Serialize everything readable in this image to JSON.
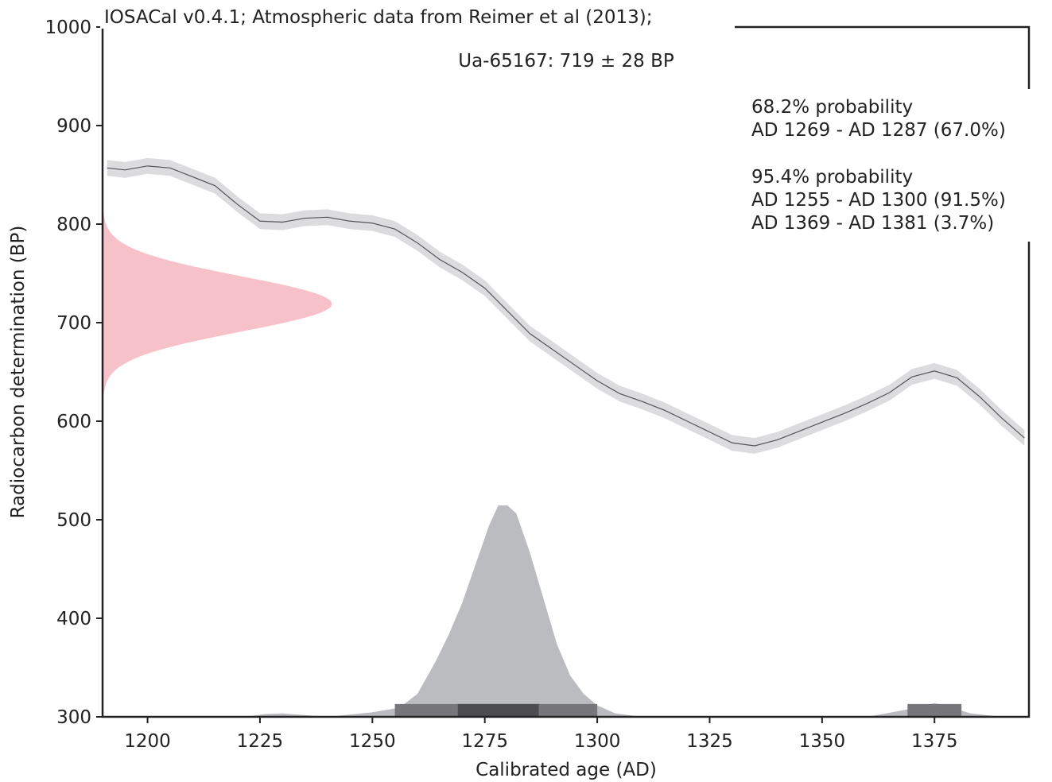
{
  "chart_data": {
    "type": "area",
    "header": "IOSACal v0.4.1; Atmospheric data from Reimer et al (2013);",
    "title": "Ua-65167: 719 ± 28 BP",
    "xlabel": "Calibrated age (AD)",
    "ylabel": "Radiocarbon determination (BP)",
    "xlim": [
      1190,
      1396
    ],
    "ylim": [
      300,
      1000
    ],
    "xticks": [
      1200,
      1225,
      1250,
      1275,
      1300,
      1325,
      1350,
      1375
    ],
    "yticks": [
      300,
      400,
      500,
      600,
      700,
      800,
      900,
      1000
    ],
    "grid": false,
    "annotation_lines": [
      "68.2% probability",
      "AD 1269 - AD 1287 (67.0%)",
      "",
      "95.4% probability",
      "AD 1255 - AD 1300 (91.5%)",
      "AD 1369 - AD 1381 (3.7%)"
    ],
    "colors": {
      "calibration_curve": "#555555",
      "calibration_band": "#dcdcde",
      "radiocarbon_distribution": "#f7c1ca",
      "calibrated_distribution": "#bbbcc0",
      "range_95": "#77777b",
      "range_68": "#4d4d50"
    },
    "radiocarbon_date": {
      "mean": 719,
      "sigma": 28
    },
    "calibration_curve": {
      "x": [
        1191,
        1195,
        1200,
        1205,
        1210,
        1215,
        1220,
        1225,
        1230,
        1235,
        1240,
        1245,
        1250,
        1255,
        1260,
        1265,
        1270,
        1275,
        1280,
        1285,
        1290,
        1295,
        1300,
        1305,
        1310,
        1315,
        1320,
        1325,
        1330,
        1335,
        1340,
        1345,
        1350,
        1355,
        1360,
        1365,
        1370,
        1375,
        1380,
        1385,
        1390,
        1395
      ],
      "y": [
        857,
        855,
        859,
        857,
        848,
        839,
        820,
        803,
        802,
        806,
        807,
        803,
        801,
        795,
        781,
        764,
        751,
        735,
        712,
        689,
        673,
        657,
        641,
        628,
        620,
        611,
        600,
        589,
        578,
        575,
        581,
        590,
        599,
        608,
        618,
        629,
        645,
        651,
        644,
        625,
        603,
        583
      ],
      "band": 8
    },
    "calibrated_distribution": {
      "x": [
        1222,
        1226,
        1230,
        1240,
        1250,
        1256,
        1260,
        1264,
        1267,
        1270,
        1273,
        1276,
        1278,
        1280,
        1282,
        1285,
        1288,
        1291,
        1294,
        1297,
        1300,
        1304,
        1310,
        1320,
        1340,
        1360,
        1367,
        1372,
        1375,
        1378,
        1383,
        1390
      ],
      "relative_density": [
        0.0,
        0.012,
        0.015,
        0.0,
        0.02,
        0.04,
        0.1,
        0.24,
        0.36,
        0.5,
        0.67,
        0.84,
        0.925,
        0.925,
        0.89,
        0.72,
        0.52,
        0.32,
        0.18,
        0.1,
        0.05,
        0.015,
        0.0,
        0.0,
        0.0,
        0.0,
        0.025,
        0.045,
        0.06,
        0.045,
        0.015,
        0.0
      ],
      "max_height_bp": 232
    },
    "ranges": {
      "68.2": [
        [
          1269,
          1287
        ]
      ],
      "95.4": [
        [
          1255,
          1300
        ],
        [
          1369,
          1381
        ]
      ]
    }
  }
}
